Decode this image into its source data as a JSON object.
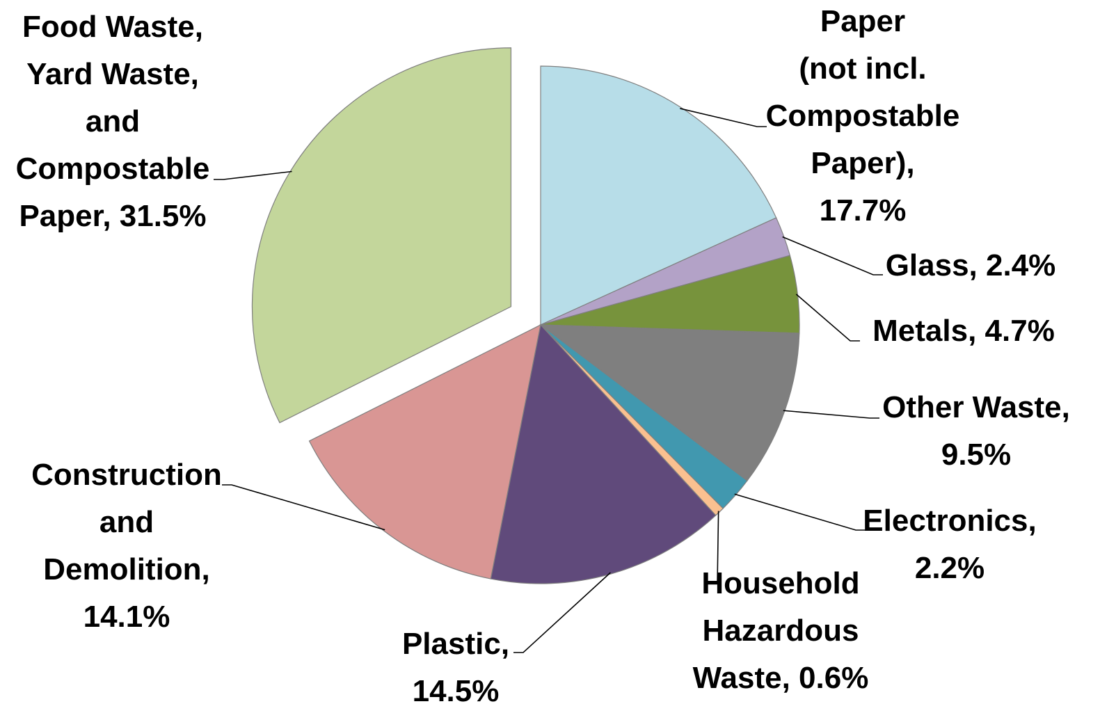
{
  "chart_data": {
    "type": "pie",
    "title": "",
    "slices": [
      {
        "label": "Paper (not incl. Compostable Paper)",
        "label_lines": [
          "Paper",
          "(not incl.",
          "Compostable",
          "Paper),",
          "17.7%"
        ],
        "value": 17.7,
        "color": "#b7dde8"
      },
      {
        "label": "Glass",
        "label_lines": [
          "Glass, 2.4%"
        ],
        "value": 2.4,
        "color": "#b3a2c7"
      },
      {
        "label": "Metals",
        "label_lines": [
          "Metals, 4.7%"
        ],
        "value": 4.7,
        "color": "#77933c"
      },
      {
        "label": "Other Waste",
        "label_lines": [
          "Other Waste,",
          "9.5%"
        ],
        "value": 9.5,
        "color": "#7f7f7f"
      },
      {
        "label": "Electronics",
        "label_lines": [
          "Electronics,",
          "2.2%"
        ],
        "value": 2.2,
        "color": "#4198af"
      },
      {
        "label": "Household Hazardous Waste",
        "label_lines": [
          "Household",
          "Hazardous",
          "Waste, 0.6%"
        ],
        "value": 0.6,
        "color": "#fac090"
      },
      {
        "label": "Plastic",
        "label_lines": [
          "Plastic,",
          "14.5%"
        ],
        "value": 14.5,
        "color": "#604a7b"
      },
      {
        "label": "Construction and Demolition",
        "label_lines": [
          "Construction",
          "and",
          "Demolition,",
          "14.1%"
        ],
        "value": 14.1,
        "color": "#d99694"
      },
      {
        "label": "Food Waste, Yard Waste, and Compostable Paper",
        "label_lines": [
          "Food Waste,",
          "Yard Waste,",
          "and",
          "Compostable",
          "Paper, 31.5%"
        ],
        "value": 31.5,
        "color": "#c3d69b",
        "exploded": true
      }
    ]
  }
}
